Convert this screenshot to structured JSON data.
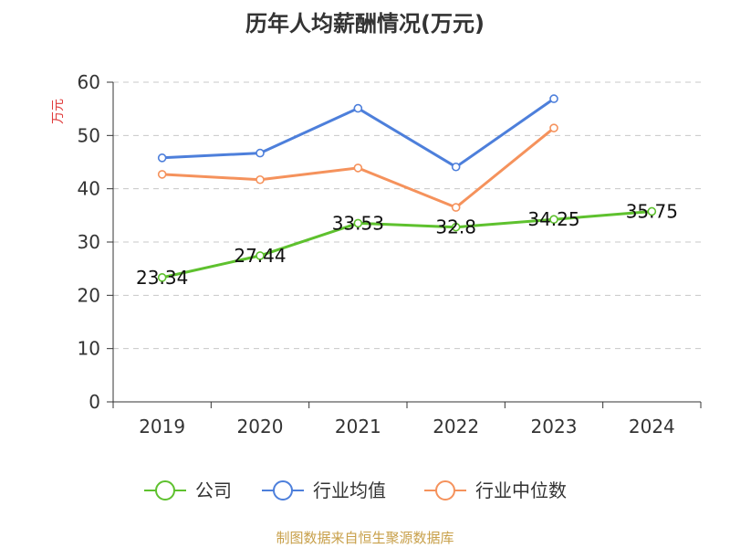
{
  "title": "历年人均薪酬情况(万元)",
  "source": "制图数据来自恒生聚源数据库",
  "chart_data": {
    "type": "line",
    "title": "历年人均薪酬情况(万元)",
    "ylabel": "万元",
    "xlabel": "",
    "categories": [
      "2019",
      "2020",
      "2021",
      "2022",
      "2023",
      "2024"
    ],
    "ylim": [
      0,
      60
    ],
    "yticks": [
      0,
      10,
      20,
      30,
      40,
      50,
      60
    ],
    "grid": "horizontal-dashed",
    "legend_position": "bottom",
    "series": [
      {
        "name": "公司",
        "color": "#5ec12e",
        "values": [
          23.34,
          27.44,
          33.53,
          32.8,
          34.25,
          35.75
        ],
        "labels": [
          "23.34",
          "27.44",
          "33.53",
          "32.8",
          "34.25",
          "35.75"
        ]
      },
      {
        "name": "行业均值",
        "color": "#4d7fdb",
        "values": [
          45.8,
          46.7,
          55.1,
          44.1,
          56.9,
          null
        ]
      },
      {
        "name": "行业中位数",
        "color": "#f5925c",
        "values": [
          42.7,
          41.7,
          43.9,
          36.5,
          51.4,
          null
        ]
      }
    ]
  }
}
